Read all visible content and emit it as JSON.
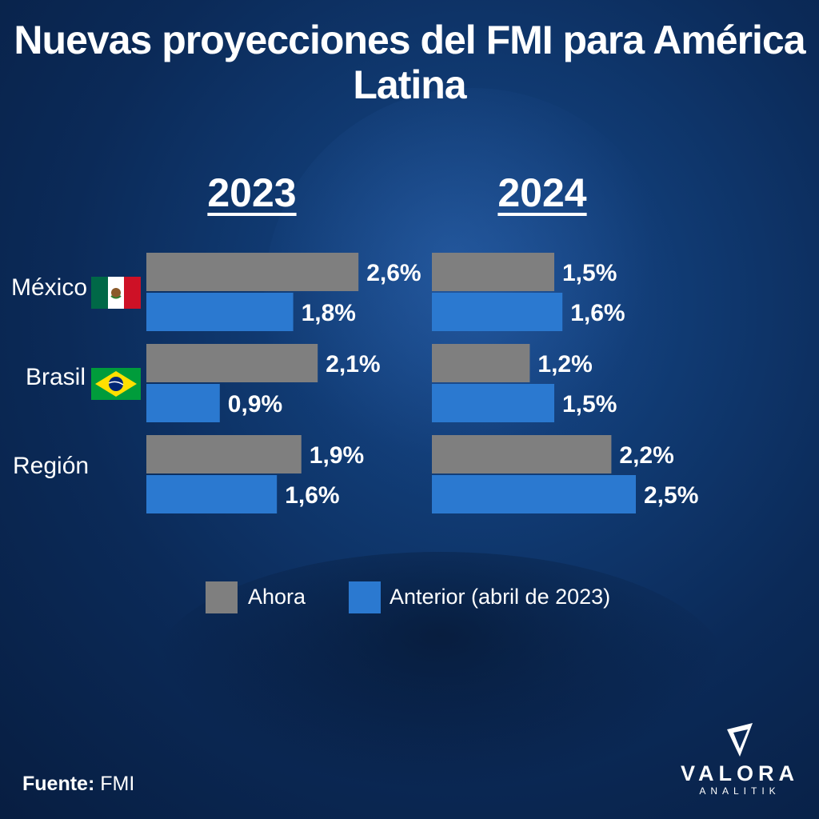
{
  "title": "Nuevas proyecciones del FMI para América Latina",
  "colors": {
    "now": "#7f7f7f",
    "previous": "#2b79d0"
  },
  "icons": {
    "mexico": "mexico-flag-icon",
    "brasil": "brazil-flag-icon",
    "logo": "valora-logo-icon"
  },
  "chart_data": {
    "type": "bar",
    "orientation": "horizontal",
    "panels": [
      "2023",
      "2024"
    ],
    "categories": [
      "México",
      "Brasil",
      "Región"
    ],
    "series": [
      {
        "name": "Ahora",
        "values": {
          "2023": [
            2.6,
            2.1,
            1.9
          ],
          "2024": [
            1.5,
            1.2,
            2.2
          ]
        }
      },
      {
        "name": "Anterior (abril de 2023)",
        "values": {
          "2023": [
            1.8,
            0.9,
            1.6
          ],
          "2024": [
            1.6,
            1.5,
            2.5
          ]
        }
      }
    ],
    "labels": {
      "2023": {
        "Ahora": [
          "2,6%",
          "2,1%",
          "1,9%"
        ],
        "Anterior (abril de 2023)": [
          "1,8%",
          "0,9%",
          "1,6%"
        ]
      },
      "2024": {
        "Ahora": [
          "1,5%",
          "1,2%",
          "2,2%"
        ],
        "Anterior (abril de 2023)": [
          "1,6%",
          "1,5%",
          "2,5%"
        ]
      }
    },
    "legend": {
      "position": "bottom",
      "now": "Ahora",
      "previous": "Anterior (abril de 2023)"
    }
  },
  "source": {
    "label": "Fuente:",
    "value": "FMI"
  },
  "brand": {
    "name": "VALORA",
    "sub": "ANALITIK"
  }
}
